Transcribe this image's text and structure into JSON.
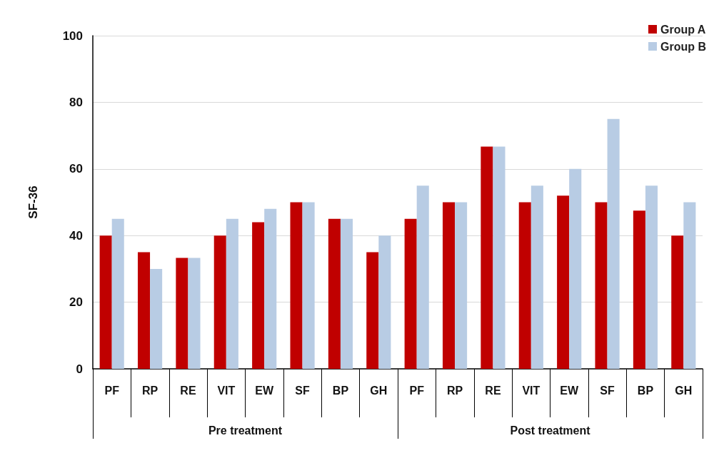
{
  "chart_data": {
    "type": "bar",
    "ylabel": "SF-36",
    "categories": [
      "PF",
      "RP",
      "RE",
      "VIT",
      "EW",
      "SF",
      "BP",
      "GH",
      "PF",
      "RP",
      "RE",
      "VIT",
      "EW",
      "SF",
      "BP",
      "GH"
    ],
    "series": [
      {
        "name": "Group A",
        "color": "#c00000",
        "values": [
          40,
          35,
          33.3,
          40,
          44,
          50,
          45,
          35,
          45,
          50,
          66.7,
          50,
          52,
          50,
          47.5,
          40
        ]
      },
      {
        "name": "Group B",
        "color": "#b8cce4",
        "values": [
          45,
          30,
          33.3,
          45,
          48,
          50,
          45,
          40,
          55,
          50,
          66.7,
          55,
          60,
          75,
          55,
          50
        ]
      }
    ],
    "annotations": [
      "Pre treatment",
      "Post treatment"
    ],
    "ylim": [
      0,
      100
    ],
    "yticks": [
      0,
      20,
      40,
      60,
      80,
      100
    ],
    "grid": "y",
    "legend": "top right"
  }
}
